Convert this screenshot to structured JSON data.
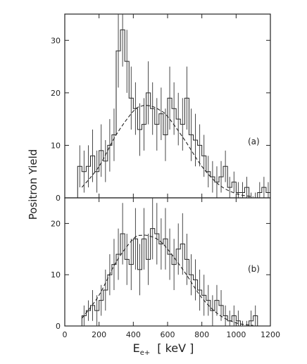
{
  "chart_data": {
    "type": "line",
    "xlabel": "E",
    "xlabel_sub": "e+",
    "xlabel_unit": "[ keV ]",
    "ylabel": "Positron Yield",
    "xlim": [
      0,
      1200
    ],
    "x_ticks": [
      0,
      200,
      400,
      600,
      800,
      1000,
      1200
    ],
    "panels": [
      {
        "label": "(a)",
        "ylim": [
          0,
          35
        ],
        "y_ticks": [
          0,
          10,
          20,
          30
        ],
        "histogram": {
          "bin_width": 25,
          "x": [
            75,
            100,
            125,
            150,
            175,
            200,
            225,
            250,
            275,
            300,
            325,
            350,
            375,
            400,
            425,
            450,
            475,
            500,
            525,
            550,
            575,
            600,
            625,
            650,
            675,
            700,
            725,
            750,
            775,
            800,
            825,
            850,
            875,
            900,
            925,
            950,
            975,
            1000,
            1025,
            1050,
            1075,
            1100,
            1125,
            1150,
            1175
          ],
          "values": [
            6,
            5,
            6,
            8,
            5,
            9,
            7,
            10,
            12,
            28,
            32,
            26,
            19,
            17,
            13,
            14,
            20,
            17,
            14,
            16,
            12,
            19,
            17,
            15,
            14,
            19,
            12,
            11,
            10,
            8,
            5,
            4,
            3,
            4,
            6,
            2,
            3,
            1,
            1,
            2,
            0,
            0,
            1,
            2,
            1
          ],
          "errors": [
            4,
            4,
            4,
            5,
            4,
            5,
            4,
            5,
            5,
            7,
            7,
            6,
            6,
            5,
            5,
            5,
            6,
            5,
            5,
            5,
            5,
            6,
            5,
            5,
            5,
            6,
            5,
            5,
            4,
            4,
            3,
            3,
            3,
            3,
            3,
            2,
            2,
            2,
            2,
            2,
            1,
            1,
            2,
            2,
            2
          ]
        },
        "fit": {
          "x": [
            100,
            200,
            300,
            400,
            450,
            500,
            550,
            600,
            700,
            800,
            900,
            1000,
            1100
          ],
          "y": [
            2,
            6,
            12,
            16.5,
            17.5,
            17.5,
            16.8,
            15.5,
            11,
            6,
            2.5,
            0.8,
            0.2
          ]
        }
      },
      {
        "label": "(b)",
        "ylim": [
          0,
          25
        ],
        "y_ticks": [
          0,
          10,
          20
        ],
        "histogram": {
          "bin_width": 25,
          "x": [
            100,
            125,
            150,
            175,
            200,
            225,
            250,
            275,
            300,
            325,
            350,
            375,
            400,
            425,
            450,
            475,
            500,
            525,
            550,
            575,
            600,
            625,
            650,
            675,
            700,
            725,
            750,
            775,
            800,
            825,
            850,
            875,
            900,
            925,
            950,
            975,
            1000,
            1025,
            1050,
            1075,
            1100
          ],
          "values": [
            2,
            3,
            4,
            3,
            5,
            7,
            10,
            12,
            14,
            18,
            13,
            12,
            17,
            11,
            17,
            13,
            19,
            18,
            16,
            17,
            14,
            12,
            15,
            16,
            13,
            10,
            9,
            7,
            6,
            5,
            3,
            5,
            4,
            2,
            1,
            2,
            1,
            0,
            0,
            1,
            2
          ],
          "errors": [
            2,
            2,
            3,
            3,
            3,
            4,
            4,
            5,
            5,
            6,
            5,
            5,
            6,
            5,
            6,
            5,
            6,
            6,
            5,
            6,
            5,
            5,
            5,
            6,
            5,
            4,
            4,
            4,
            4,
            3,
            3,
            3,
            3,
            2,
            2,
            2,
            2,
            1,
            1,
            2,
            2
          ]
        },
        "fit": {
          "x": [
            100,
            200,
            300,
            400,
            450,
            500,
            550,
            600,
            700,
            800,
            900,
            1000,
            1100
          ],
          "y": [
            1.5,
            6,
            12.5,
            17,
            17.7,
            17.5,
            16.7,
            15,
            10.5,
            5.5,
            2.2,
            0.6,
            0.1
          ]
        }
      }
    ]
  }
}
